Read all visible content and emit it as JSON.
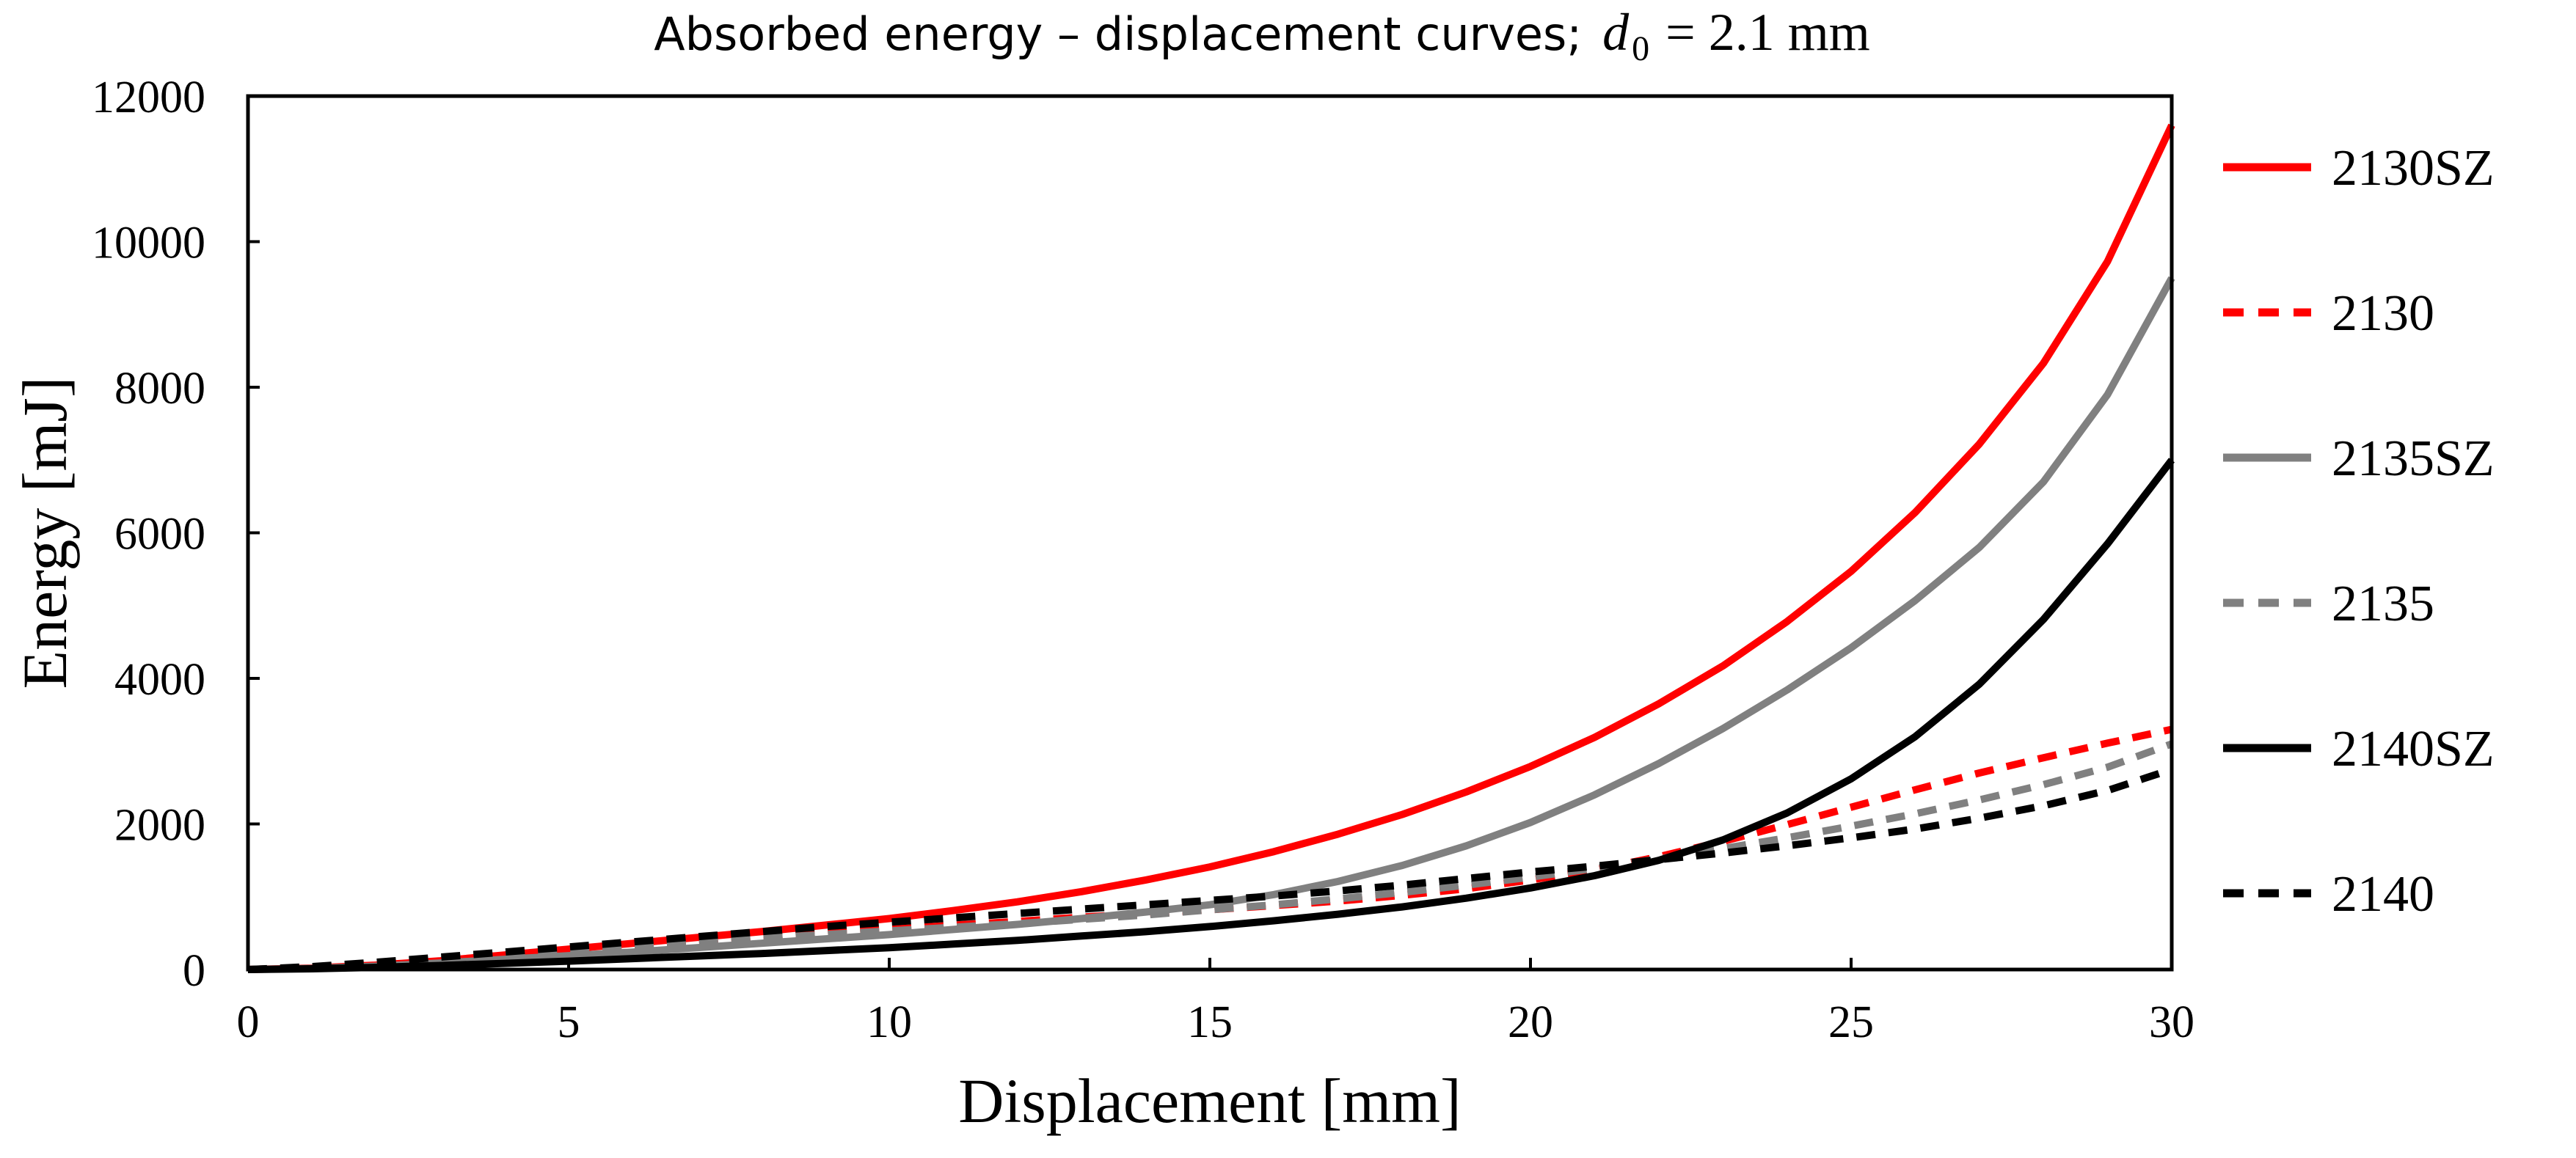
{
  "chart_data": {
    "type": "line",
    "title_prefix": "Absorbed energy – displacement curves;",
    "title_symbol": "d",
    "title_subscript": "0",
    "title_equation": "= 2.1 mm",
    "xlabel": "Displacement [mm]",
    "ylabel": "Energy [mJ]",
    "xlim": [
      0,
      30
    ],
    "ylim": [
      0,
      12000
    ],
    "xticks": [
      0,
      5,
      10,
      15,
      20,
      25,
      30
    ],
    "yticks": [
      0,
      2000,
      4000,
      6000,
      8000,
      10000,
      12000
    ],
    "grid": false,
    "legend_position": "right",
    "x": [
      0,
      1,
      2,
      3,
      4,
      5,
      6,
      7,
      8,
      9,
      10,
      11,
      12,
      13,
      14,
      15,
      16,
      17,
      18,
      19,
      20,
      21,
      22,
      23,
      24,
      25,
      26,
      27,
      28,
      29,
      30
    ],
    "series": [
      {
        "name": "2130SZ",
        "color": "#ff0000",
        "dashed": false,
        "values": [
          0,
          20,
          60,
          120,
          200,
          280,
          360,
          440,
          520,
          610,
          700,
          810,
          930,
          1070,
          1230,
          1410,
          1620,
          1860,
          2130,
          2440,
          2790,
          3190,
          3650,
          4170,
          4780,
          5470,
          6280,
          7220,
          8330,
          9730,
          11600
        ]
      },
      {
        "name": "2130",
        "color": "#ff0000",
        "dashed": true,
        "values": [
          0,
          30,
          80,
          140,
          200,
          260,
          320,
          380,
          440,
          500,
          550,
          610,
          660,
          720,
          770,
          820,
          880,
          940,
          1020,
          1110,
          1230,
          1370,
          1550,
          1760,
          1990,
          2230,
          2470,
          2700,
          2910,
          3110,
          3300
        ]
      },
      {
        "name": "2135SZ",
        "color": "#808080",
        "dashed": false,
        "values": [
          0,
          15,
          45,
          90,
          140,
          190,
          240,
          300,
          360,
          420,
          480,
          550,
          620,
          700,
          790,
          890,
          1030,
          1210,
          1430,
          1700,
          2020,
          2400,
          2830,
          3310,
          3840,
          4420,
          5070,
          5800,
          6700,
          7900,
          9500
        ]
      },
      {
        "name": "2135",
        "color": "#808080",
        "dashed": true,
        "values": [
          0,
          30,
          80,
          140,
          200,
          260,
          320,
          380,
          430,
          480,
          530,
          580,
          630,
          690,
          750,
          820,
          890,
          970,
          1060,
          1160,
          1270,
          1390,
          1520,
          1660,
          1810,
          1970,
          2140,
          2330,
          2540,
          2780,
          3100
        ]
      },
      {
        "name": "2140SZ",
        "color": "#000000",
        "dashed": false,
        "values": [
          0,
          10,
          30,
          55,
          85,
          115,
          150,
          185,
          220,
          260,
          300,
          350,
          400,
          460,
          520,
          590,
          670,
          760,
          860,
          980,
          1120,
          1290,
          1500,
          1780,
          2150,
          2620,
          3200,
          3920,
          4810,
          5850,
          7000
        ]
      },
      {
        "name": "2140",
        "color": "#000000",
        "dashed": true,
        "values": [
          0,
          40,
          100,
          170,
          240,
          310,
          380,
          450,
          520,
          590,
          650,
          710,
          770,
          830,
          890,
          950,
          1010,
          1080,
          1160,
          1250,
          1340,
          1420,
          1510,
          1600,
          1700,
          1810,
          1930,
          2080,
          2250,
          2460,
          2750
        ]
      }
    ]
  }
}
